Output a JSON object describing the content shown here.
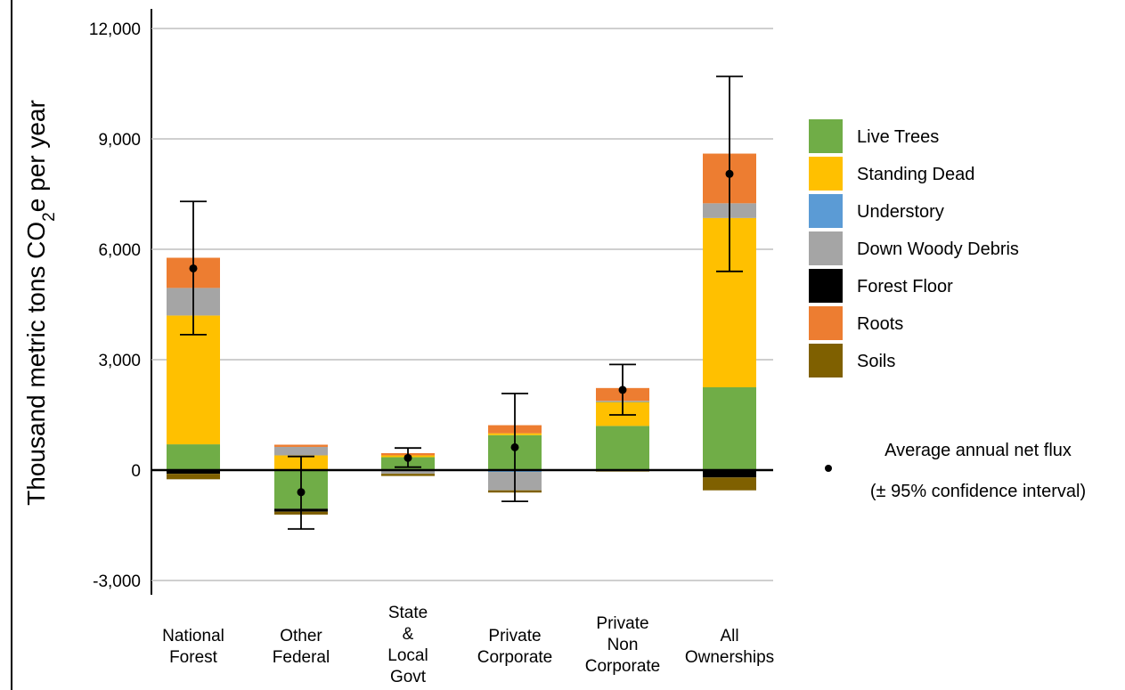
{
  "chart_data": {
    "type": "bar",
    "stacked": true,
    "ylabel": "Thousand metric tons CO₂e per year",
    "ylabel_parts": {
      "pre": "Thousand metric tons CO",
      "sub": "2",
      "post": "e per year"
    },
    "ylim": [
      -3000,
      12000
    ],
    "yticks": [
      -3000,
      0,
      3000,
      6000,
      9000,
      12000
    ],
    "ytick_labels": [
      "-3,000",
      "0",
      "3,000",
      "6,000",
      "9,000",
      "12,000"
    ],
    "grid": true,
    "legend_position": "right",
    "categories": [
      [
        "National",
        "Forest"
      ],
      [
        "Other",
        "Federal"
      ],
      [
        "State",
        "&",
        "Local",
        "Govt"
      ],
      [
        "Private",
        "Corporate"
      ],
      [
        "Private",
        "Non",
        "Corporate"
      ],
      [
        "All",
        "Ownerships"
      ]
    ],
    "series": [
      {
        "name": "Live Trees",
        "color": "#70ad47",
        "values": [
          700,
          -1050,
          350,
          950,
          1200,
          2250
        ]
      },
      {
        "name": "Standing Dead",
        "color": "#ffc000",
        "values": [
          3500,
          400,
          50,
          50,
          650,
          4600
        ]
      },
      {
        "name": "Understory",
        "color": "#5b9bd5",
        "values": [
          0,
          0,
          0,
          -50,
          20,
          0
        ]
      },
      {
        "name": "Down Woody Debris",
        "color": "#a5a5a5",
        "values": [
          750,
          230,
          -100,
          -500,
          10,
          400
        ]
      },
      {
        "name": "Forest Floor",
        "color": "#000000",
        "values": [
          -100,
          -80,
          0,
          0,
          0,
          -200
        ]
      },
      {
        "name": "Roots",
        "color": "#ed7d31",
        "values": [
          820,
          60,
          60,
          220,
          350,
          1350
        ]
      },
      {
        "name": "Soils",
        "color": "#7f6000",
        "values": [
          -150,
          -80,
          -60,
          -60,
          -40,
          -350
        ]
      }
    ],
    "net_flux": {
      "label": [
        "Average annual net flux",
        "(± 95% confidence interval)"
      ],
      "mean": [
        5480,
        -600,
        330,
        620,
        2180,
        8050
      ],
      "lower": [
        3680,
        -1600,
        80,
        -850,
        1500,
        5400
      ],
      "upper": [
        7300,
        370,
        600,
        2080,
        2870,
        10700
      ]
    }
  }
}
